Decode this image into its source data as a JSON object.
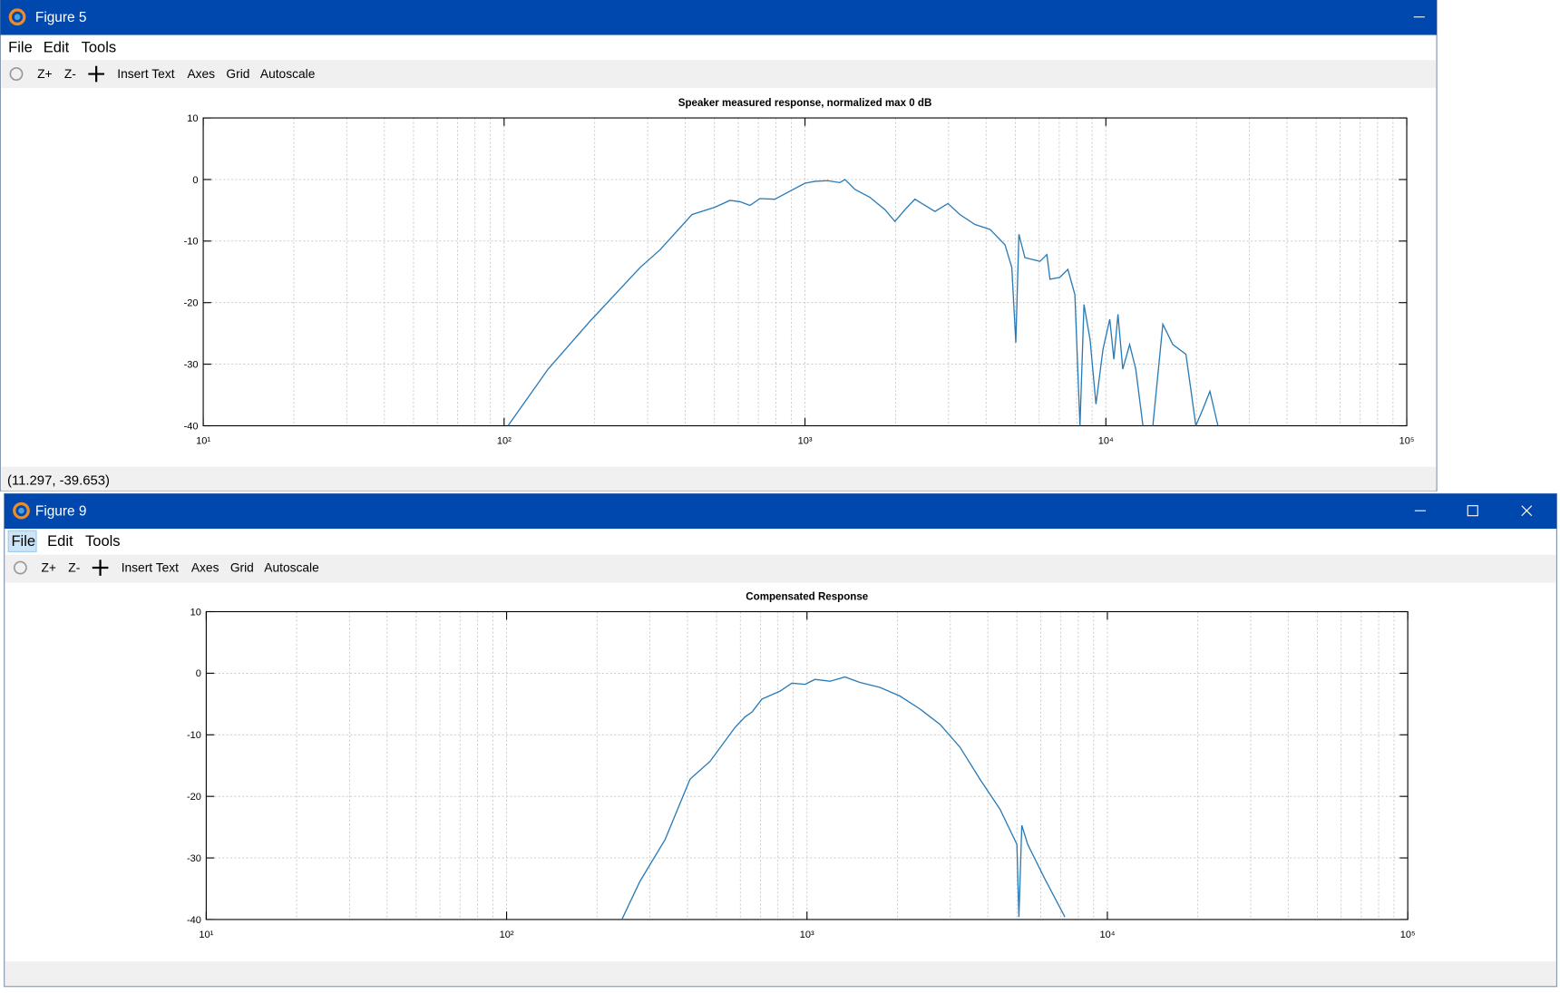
{
  "windows": [
    {
      "title": "Figure 5",
      "menu": [
        "File",
        "Edit",
        "Tools"
      ],
      "toolbar": [
        "Z+",
        "Z-",
        "Insert Text",
        "Axes",
        "Grid",
        "Autoscale"
      ],
      "status": "(11.297, -39.653)"
    },
    {
      "title": "Figure 9",
      "menu": [
        "File",
        "Edit",
        "Tools"
      ],
      "toolbar": [
        "Z+",
        "Z-",
        "Insert Text",
        "Axes",
        "Grid",
        "Autoscale"
      ]
    }
  ],
  "chart_data": [
    {
      "type": "line",
      "title": "Speaker measured response, normalized max 0 dB",
      "log_x": true,
      "grid": true,
      "minor_grid": true,
      "color": "#2a7ab5",
      "xlim": [
        10,
        100000
      ],
      "ylim": [
        -40,
        10
      ],
      "xticks": [
        {
          "value": 10,
          "label": "10¹"
        },
        {
          "value": 100,
          "label": "10²"
        },
        {
          "value": 1000,
          "label": "10³"
        },
        {
          "value": 10000,
          "label": "10⁴"
        },
        {
          "value": 100000,
          "label": "10⁵"
        }
      ],
      "yticks": [
        10,
        0,
        -10,
        -20,
        -30,
        -40
      ],
      "x": [
        103,
        140,
        193,
        283,
        330,
        421,
        502,
        563,
        608,
        656,
        708,
        794,
        891,
        1000,
        1080,
        1190,
        1306,
        1358,
        1466,
        1644,
        1844,
        1991,
        2149,
        2319,
        2504,
        2703,
        2985,
        3273,
        3672,
        4120,
        4620,
        4870,
        5020,
        5140,
        5380,
        6040,
        6370,
        6520,
        7030,
        7480,
        7890,
        8200,
        8460,
        8860,
        9270,
        9780,
        10300,
        10630,
        10970,
        11380,
        12000,
        12570,
        13280,
        13800,
        14330,
        15460,
        16700,
        18450,
        19160,
        19900,
        21000,
        22170,
        23570
      ],
      "values": [
        -40,
        -30.8,
        -23,
        -14.3,
        -11.4,
        -5.7,
        -4.5,
        -3.4,
        -3.6,
        -4.2,
        -3.1,
        -3.2,
        -1.9,
        -0.6,
        -0.3,
        -0.2,
        -0.5,
        0,
        -1.6,
        -2.9,
        -4.9,
        -6.8,
        -4.9,
        -3.2,
        -4.2,
        -5.2,
        -3.9,
        -5.7,
        -7.3,
        -8.1,
        -10.6,
        -14.3,
        -26.5,
        -8.9,
        -12.7,
        -13.3,
        -12.2,
        -16.2,
        -15.9,
        -14.6,
        -18.7,
        -40,
        -20.3,
        -26,
        -36.5,
        -27.6,
        -22.7,
        -29.2,
        -21.9,
        -30.8,
        -26.8,
        -30.8,
        -40,
        null,
        -40,
        -23.5,
        -26.8,
        -28.4,
        -34.1,
        -40,
        -37.3,
        -34.4,
        -40
      ]
    },
    {
      "type": "line",
      "title": "Compensated Response",
      "log_x": true,
      "grid": true,
      "minor_grid": true,
      "color": "#2a7ab5",
      "xlim": [
        10,
        100000
      ],
      "ylim": [
        -40,
        10
      ],
      "xticks": [
        {
          "value": 10,
          "label": "10¹"
        },
        {
          "value": 100,
          "label": "10²"
        },
        {
          "value": 1000,
          "label": "10³"
        },
        {
          "value": 10000,
          "label": "10⁴"
        },
        {
          "value": 100000,
          "label": "10⁵"
        }
      ],
      "yticks": [
        10,
        0,
        -10,
        -20,
        -30,
        -40
      ],
      "x": [
        242,
        278,
        337,
        408,
        476,
        576,
        622,
        656,
        708,
        813,
        891,
        985,
        1063,
        1193,
        1338,
        1500,
        1749,
        2038,
        2375,
        2770,
        3230,
        3765,
        4390,
        4810,
        5000,
        5075,
        5190,
        5430,
        6190,
        7220
      ],
      "values": [
        -40,
        -33.8,
        -27,
        -17.2,
        -14.3,
        -8.8,
        -7.1,
        -6.3,
        -4.2,
        -2.9,
        -1.6,
        -1.8,
        -1.0,
        -1.3,
        -0.6,
        -1.5,
        -2.3,
        -3.7,
        -5.8,
        -8.3,
        -12,
        -17.2,
        -22.1,
        -26.1,
        -27.8,
        -39.6,
        -24.7,
        -27.8,
        -33.4,
        -39.6
      ]
    }
  ]
}
